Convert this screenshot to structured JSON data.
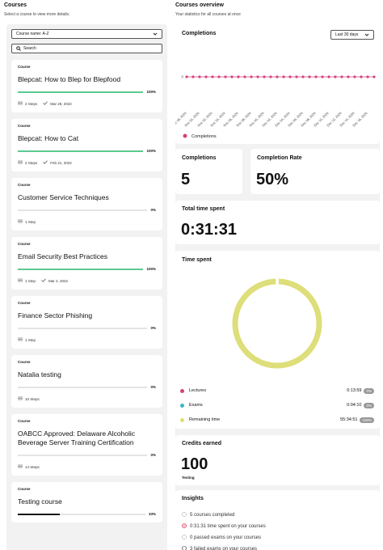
{
  "courses_panel": {
    "title": "Courses",
    "subtitle": "Select a course to view more details.",
    "sort": "Course name: A-Z",
    "search": "Search",
    "courses": [
      {
        "type": "Course",
        "title": "Blepcat: How to Blep for Blepfood",
        "progress": 100,
        "progress_label": "100%",
        "steps": "2 Steps",
        "date": "Mar 28, 2022"
      },
      {
        "type": "Course",
        "title": "Blepcat: How to Cat",
        "progress": 100,
        "progress_label": "100%",
        "steps": "2 Steps",
        "date": "Feb 21, 2022"
      },
      {
        "type": "Course",
        "title": "Customer Service Techniques",
        "progress": 0,
        "progress_label": "0%",
        "steps": "1 Step"
      },
      {
        "type": "Course",
        "title": "Email Security Best Practices",
        "progress": 100,
        "progress_label": "100%",
        "steps": "1 Step",
        "date": "Mar 2, 2022"
      },
      {
        "type": "Course",
        "title": "Finance Sector Phishing",
        "progress": 0,
        "progress_label": "0%",
        "steps": "1 Step"
      },
      {
        "type": "Course",
        "title": "Natalia testing",
        "progress": 0,
        "progress_label": "0%",
        "steps": "10 Steps"
      },
      {
        "type": "Course",
        "title": "OABCC Approved: Delaware Alcoholic Beverage Server Training Certification",
        "progress": 0,
        "progress_label": "0%",
        "steps": "14 Steps"
      },
      {
        "type": "Course",
        "title": "Testing course",
        "progress": 33,
        "progress_label": "33%"
      }
    ]
  },
  "overview": {
    "title": "Courses overview",
    "subtitle": "Your statistics for all courses at once",
    "completions_chart": {
      "type": "line",
      "title": "Completions",
      "range": "Last 30 days",
      "categories": [
        "Nov 18, 2024",
        null,
        "Nov 20, 2024",
        null,
        "Nov 22, 2024",
        null,
        "Nov 24, 2024",
        null,
        "Nov 26, 2024",
        null,
        "Nov 28, 2024",
        null,
        "Nov 30, 2024",
        null,
        "Dec 02, 2024",
        null,
        "Dec 04, 2024",
        null,
        "Dec 06, 2024",
        null,
        "Dec 08, 2024",
        null,
        "Dec 10, 2024",
        null,
        "Dec 12, 2024",
        null,
        "Dec 14, 2024",
        null,
        "Dec 16, 2024",
        null
      ],
      "series": [
        {
          "name": "Completions",
          "color": "#d6417e",
          "values": [
            0,
            0,
            0,
            0,
            0,
            0,
            0,
            0,
            0,
            0,
            0,
            0,
            0,
            0,
            0,
            0,
            0,
            0,
            0,
            0,
            0,
            0,
            0,
            0,
            0,
            0,
            0,
            0,
            0,
            0
          ]
        }
      ],
      "ylim": [
        -1,
        1
      ],
      "yticks": [
        0
      ]
    },
    "completions": {
      "label": "Completions",
      "value": "5"
    },
    "completion_rate": {
      "label": "Completion Rate",
      "value": "50%"
    },
    "total_time": {
      "label": "Total time spent",
      "value": "0:31:31"
    },
    "time_spent": {
      "title": "Time spent",
      "items": [
        {
          "name": "Lectures",
          "color": "#d6417e",
          "time": "0:13:59",
          "percent": 0,
          "percent_label": "0%"
        },
        {
          "name": "Exams",
          "color": "#3bb5c9",
          "time": "0:04:10",
          "percent": 0,
          "percent_label": "0%"
        },
        {
          "name": "Remaining time",
          "color": "#dede7a",
          "time": "55:34:51",
          "percent": 100,
          "percent_label": "100%"
        }
      ]
    },
    "credits": {
      "title": "Credits earned",
      "value": "100",
      "unit": "Testing"
    },
    "insights": {
      "title": "Insights",
      "items": [
        "5 courses completed",
        "0:31:31 time spent on your courses",
        "0 passed exams on your courses",
        "3 failed exams on your courses"
      ]
    }
  }
}
